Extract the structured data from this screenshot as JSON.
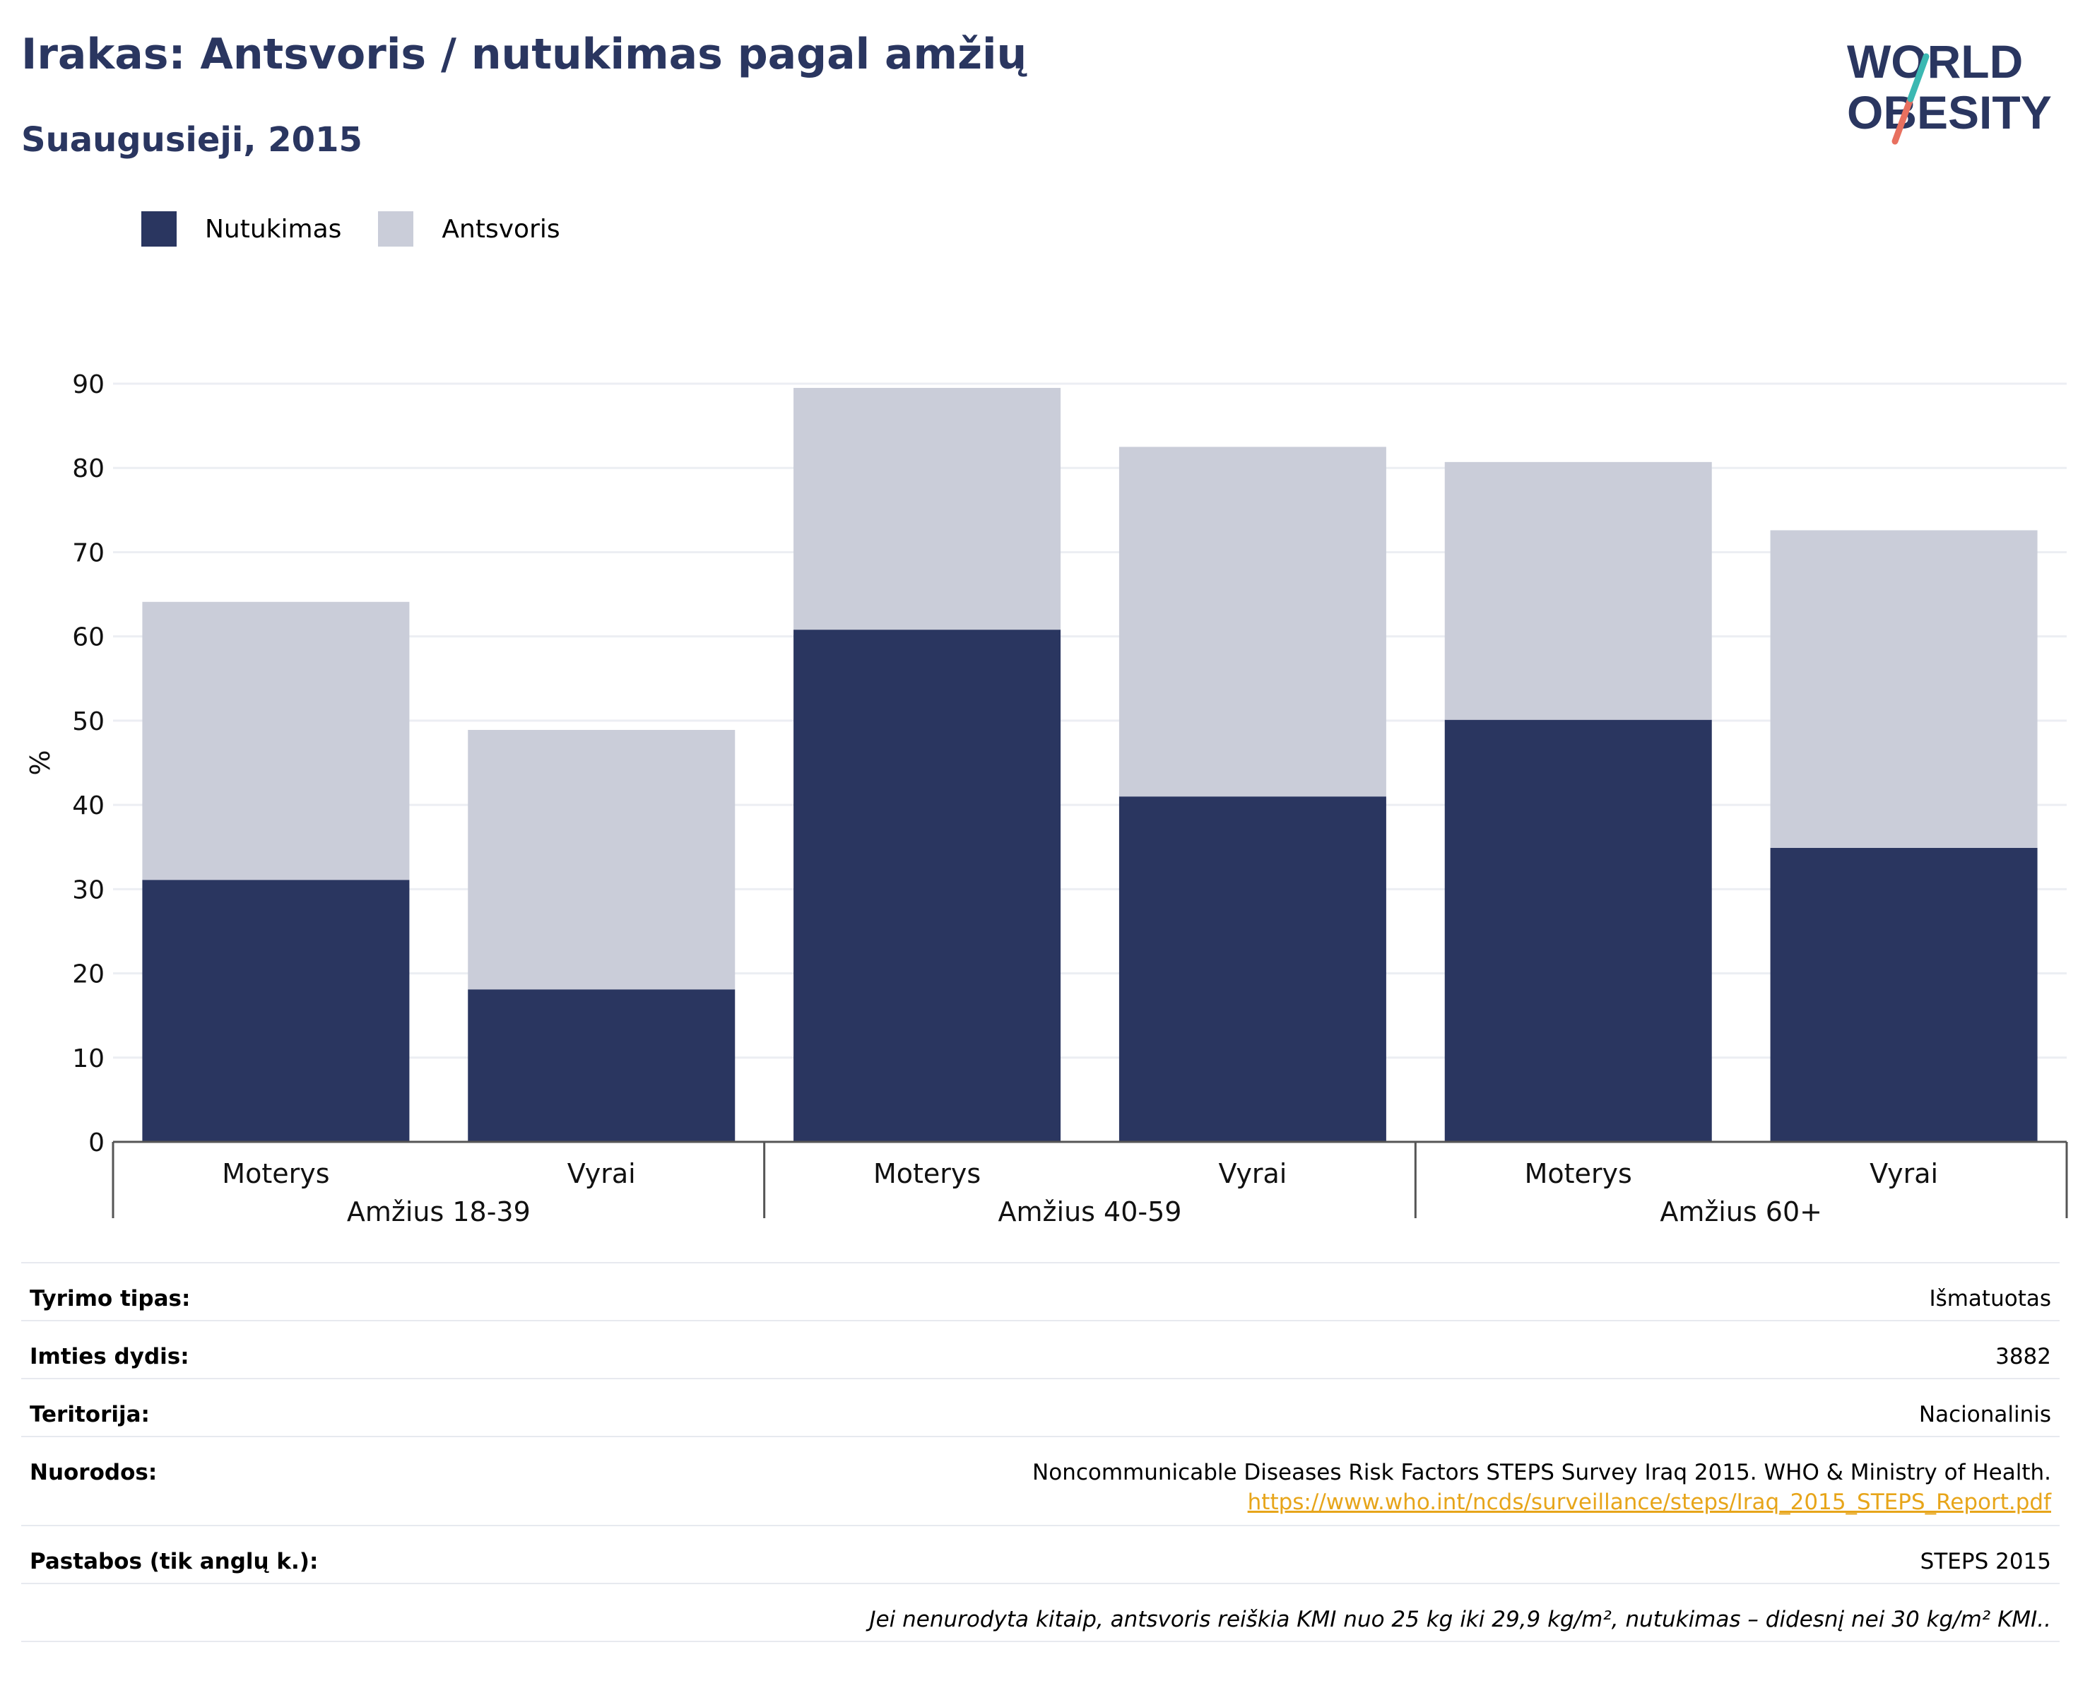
{
  "header": {
    "title": "Irakas: Antsvoris / nutukimas pagal amžių",
    "subtitle": "Suaugusieji, 2015"
  },
  "logo": {
    "line1": "WORLD",
    "line2": "OBESITY",
    "navy": "#2a3660",
    "teal": "#3bb8b2",
    "coral": "#e8705f"
  },
  "colors": {
    "obesity": "#2a3660",
    "overweight": "#cacdd9",
    "grid": "#eceef3",
    "axis": "#555555"
  },
  "chart_data": {
    "type": "bar",
    "stacked": true,
    "ylabel": "%",
    "ylim": [
      0,
      90
    ],
    "yticks": [
      0,
      10,
      20,
      30,
      40,
      50,
      60,
      70,
      80,
      90
    ],
    "grid": true,
    "legend_position": "top-left",
    "groups": [
      "Amžius 18-39",
      "Amžius 40-59",
      "Amžius 60+"
    ],
    "categories": [
      "Moterys",
      "Vyrai",
      "Moterys",
      "Vyrai",
      "Moterys",
      "Vyrai"
    ],
    "series": [
      {
        "name": "Nutukimas",
        "values": [
          31.1,
          18.1,
          60.8,
          41.0,
          50.1,
          34.9
        ]
      },
      {
        "name": "Antsvoris",
        "values": [
          33.0,
          30.8,
          28.7,
          41.5,
          30.6,
          37.7
        ]
      }
    ]
  },
  "info": {
    "rows": [
      {
        "label": "Tyrimo tipas:",
        "value": "Išmatuotas"
      },
      {
        "label": "Imties dydis:",
        "value": "3882"
      },
      {
        "label": "Teritorija:",
        "value": "Nacionalinis"
      },
      {
        "label": "Nuorodos:",
        "value": "Noncommunicable Diseases Risk Factors STEPS Survey Iraq 2015. WHO & Ministry of Health.",
        "link": "https://www.who.int/ncds/surveillance/steps/Iraq_2015_STEPS_Report.pdf"
      },
      {
        "label": "Pastabos (tik anglų k.):",
        "value": "STEPS 2015"
      }
    ],
    "note": "Jei nenurodyta kitaip, antsvoris reiškia KMI nuo 25 kg iki 29,9 kg/m², nutukimas – didesnį nei 30 kg/m² KMI.."
  }
}
